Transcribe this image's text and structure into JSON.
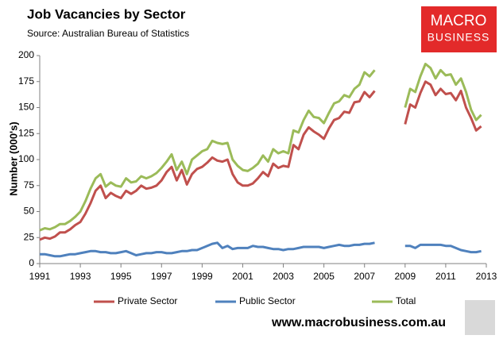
{
  "chart_data": {
    "type": "line",
    "title": "Job Vacancies by Sector",
    "subtitle": "Source: Australian Bureau of Statistics",
    "ylabel": "Number (000's)",
    "logo": {
      "line1": "MACRO",
      "line2": "BUSINESS"
    },
    "website": "www.macrobusiness.com.au",
    "xlim": [
      1991,
      2013
    ],
    "xticks": [
      1991,
      1993,
      1995,
      1997,
      1999,
      2001,
      2003,
      2005,
      2007,
      2009,
      2011,
      2013
    ],
    "ylim": [
      0,
      200
    ],
    "yticks": [
      0,
      25,
      50,
      75,
      100,
      125,
      150,
      175,
      200
    ],
    "grid": false,
    "legend": "bottom",
    "x": [
      1991,
      1991.25,
      1991.5,
      1991.75,
      1992,
      1992.25,
      1992.5,
      1992.75,
      1993,
      1993.25,
      1993.5,
      1993.75,
      1994,
      1994.25,
      1994.5,
      1994.75,
      1995,
      1995.25,
      1995.5,
      1995.75,
      1996,
      1996.25,
      1996.5,
      1996.75,
      1997,
      1997.25,
      1997.5,
      1997.75,
      1998,
      1998.25,
      1998.5,
      1998.75,
      1999,
      1999.25,
      1999.5,
      1999.75,
      2000,
      2000.25,
      2000.5,
      2000.75,
      2001,
      2001.25,
      2001.5,
      2001.75,
      2002,
      2002.25,
      2002.5,
      2002.75,
      2003,
      2003.25,
      2003.5,
      2003.75,
      2004,
      2004.25,
      2004.5,
      2004.75,
      2005,
      2005.25,
      2005.5,
      2005.75,
      2006,
      2006.25,
      2006.5,
      2006.75,
      2007,
      2007.25,
      2007.5,
      2007.75,
      2008,
      2008.25,
      2008.5,
      2008.75,
      2009,
      2009.25,
      2009.5,
      2009.75,
      2010,
      2010.25,
      2010.5,
      2010.75,
      2011,
      2011.25,
      2011.5,
      2011.75,
      2012,
      2012.25,
      2012.5,
      2012.75
    ],
    "series": [
      {
        "name": "Private Sector",
        "color": "#c0504d",
        "values": [
          23,
          25,
          24,
          26,
          30,
          30,
          33,
          37,
          40,
          48,
          58,
          70,
          75,
          63,
          68,
          65,
          63,
          70,
          67,
          70,
          75,
          72,
          73,
          75,
          80,
          88,
          93,
          80,
          90,
          76,
          86,
          91,
          93,
          97,
          102,
          99,
          98,
          100,
          86,
          78,
          75,
          75,
          77,
          82,
          88,
          84,
          96,
          92,
          94,
          93,
          114,
          110,
          124,
          131,
          127,
          124,
          120,
          130,
          138,
          140,
          146,
          145,
          155,
          156,
          165,
          160,
          166,
          null,
          null,
          null,
          null,
          null,
          134,
          153,
          150,
          164,
          175,
          172,
          162,
          168,
          163,
          164,
          157,
          166,
          150,
          140,
          128,
          132
        ]
      },
      {
        "name": "Public Sector",
        "color": "#4f81bd",
        "values": [
          9,
          9,
          8,
          7,
          7,
          8,
          9,
          9,
          10,
          11,
          12,
          12,
          11,
          11,
          10,
          10,
          11,
          12,
          10,
          8,
          9,
          10,
          10,
          11,
          11,
          10,
          10,
          11,
          12,
          12,
          13,
          13,
          15,
          17,
          19,
          20,
          15,
          17,
          14,
          15,
          15,
          15,
          17,
          16,
          16,
          15,
          14,
          14,
          13,
          14,
          14,
          15,
          16,
          16,
          16,
          16,
          15,
          16,
          17,
          18,
          17,
          17,
          18,
          18,
          19,
          19,
          20,
          null,
          null,
          null,
          null,
          null,
          17,
          17,
          15,
          18,
          18,
          18,
          18,
          18,
          17,
          17,
          15,
          13,
          12,
          11,
          11,
          12
        ]
      },
      {
        "name": "Total",
        "color": "#9bbb59",
        "values": [
          32,
          34,
          33,
          35,
          38,
          38,
          41,
          45,
          50,
          60,
          72,
          82,
          86,
          74,
          78,
          75,
          74,
          82,
          78,
          79,
          84,
          82,
          84,
          87,
          92,
          98,
          105,
          90,
          98,
          86,
          100,
          104,
          108,
          110,
          118,
          116,
          115,
          116,
          100,
          94,
          90,
          89,
          92,
          96,
          104,
          98,
          110,
          106,
          108,
          106,
          128,
          126,
          138,
          147,
          141,
          140,
          135,
          145,
          154,
          156,
          162,
          160,
          168,
          172,
          184,
          180,
          186,
          null,
          null,
          null,
          null,
          null,
          150,
          168,
          165,
          180,
          192,
          188,
          178,
          186,
          181,
          182,
          172,
          178,
          165,
          148,
          138,
          143
        ]
      }
    ]
  }
}
